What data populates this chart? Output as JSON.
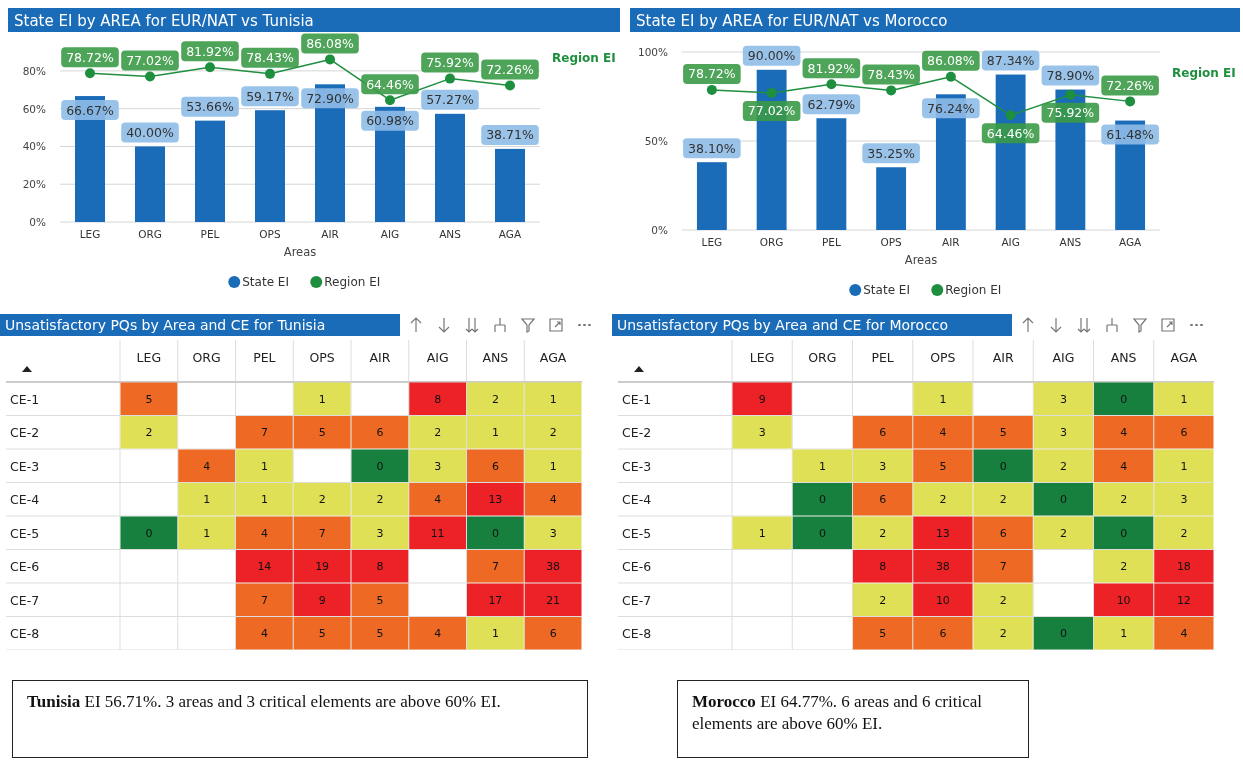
{
  "chart_data": [
    {
      "type": "bar",
      "title": "State EI by AREA for EUR/NAT vs Tunisia",
      "xlabel": "Areas",
      "categories": [
        "LEG",
        "ORG",
        "PEL",
        "OPS",
        "AIR",
        "AIG",
        "ANS",
        "AGA"
      ],
      "series": [
        {
          "name": "State EI",
          "type": "bar",
          "color": "#1a6bb8",
          "values": [
            66.67,
            40.0,
            53.66,
            59.17,
            72.9,
            60.98,
            57.27,
            38.71
          ],
          "value_labels": [
            "66.67%",
            "40.00%",
            "53.66%",
            "59.17%",
            "72.90%",
            "60.98%",
            "57.27%",
            "38.71%"
          ]
        },
        {
          "name": "Region EI",
          "type": "line",
          "color": "#1e8f3e",
          "marker": "circle",
          "values": [
            78.72,
            77.02,
            81.92,
            78.43,
            86.08,
            64.46,
            75.92,
            72.26
          ],
          "value_labels": [
            "78.72%",
            "77.02%",
            "81.92%",
            "78.43%",
            "86.08%",
            "64.46%",
            "75.92%",
            "72.26%"
          ]
        }
      ],
      "ylim": [
        0,
        90
      ],
      "yticks": [
        {
          "value": 0,
          "label": "0%"
        },
        {
          "value": 20,
          "label": "20%"
        },
        {
          "value": 40,
          "label": "40%"
        },
        {
          "value": 60,
          "label": "60%"
        },
        {
          "value": 80,
          "label": "80%"
        }
      ],
      "grid": "y",
      "legend": "bottom"
    },
    {
      "type": "bar",
      "title": "State EI by AREA for EUR/NAT vs Morocco",
      "xlabel": "Areas",
      "categories": [
        "LEG",
        "ORG",
        "PEL",
        "OPS",
        "AIR",
        "AIG",
        "ANS",
        "AGA"
      ],
      "series": [
        {
          "name": "State EI",
          "type": "bar",
          "color": "#1a6bb8",
          "values": [
            38.1,
            90.0,
            62.79,
            35.25,
            76.24,
            87.34,
            78.9,
            61.48
          ],
          "value_labels": [
            "38.10%",
            "90.00%",
            "62.79%",
            "35.25%",
            "76.24%",
            "87.34%",
            "78.90%",
            "61.48%"
          ]
        },
        {
          "name": "Region EI",
          "type": "line",
          "color": "#1e8f3e",
          "marker": "circle",
          "values": [
            78.72,
            77.02,
            81.92,
            78.43,
            86.08,
            64.46,
            75.92,
            72.26
          ],
          "value_labels": [
            "78.72%",
            "77.02%",
            "81.92%",
            "78.43%",
            "86.08%",
            "64.46%",
            "75.92%",
            "72.26%"
          ]
        }
      ],
      "ylim": [
        0,
        100
      ],
      "yticks": [
        {
          "value": 0,
          "label": "0%"
        },
        {
          "value": 50,
          "label": "50%"
        },
        {
          "value": 100,
          "label": "100%"
        }
      ],
      "grid": "y",
      "legend": "bottom"
    },
    {
      "type": "heatmap",
      "title": "Unsatisfactory PQs by Area and CE for Tunisia",
      "categories": [
        "LEG",
        "ORG",
        "PEL",
        "OPS",
        "AIR",
        "AIG",
        "ANS",
        "AGA"
      ],
      "y_categories": [
        "CE-1",
        "CE-2",
        "CE-3",
        "CE-4",
        "CE-5",
        "CE-6",
        "CE-7",
        "CE-8"
      ],
      "colors": [
        "#17803e",
        "#dfe055",
        "#ee6a24",
        "#ec2227"
      ],
      "data_labels": true,
      "cells": [
        [
          5,
          null,
          null,
          1,
          null,
          8,
          2,
          1
        ],
        [
          2,
          null,
          7,
          5,
          6,
          2,
          1,
          2
        ],
        [
          null,
          4,
          1,
          null,
          0,
          3,
          6,
          1
        ],
        [
          null,
          1,
          1,
          2,
          2,
          4,
          13,
          4
        ],
        [
          0,
          1,
          4,
          7,
          3,
          11,
          0,
          3
        ],
        [
          null,
          null,
          14,
          19,
          8,
          null,
          7,
          38
        ],
        [
          null,
          null,
          7,
          9,
          5,
          null,
          17,
          21
        ],
        [
          null,
          null,
          4,
          5,
          5,
          4,
          1,
          6
        ]
      ]
    },
    {
      "type": "heatmap",
      "title": "Unsatisfactory PQs by Area and CE for Morocco",
      "categories": [
        "LEG",
        "ORG",
        "PEL",
        "OPS",
        "AIR",
        "AIG",
        "ANS",
        "AGA"
      ],
      "y_categories": [
        "CE-1",
        "CE-2",
        "CE-3",
        "CE-4",
        "CE-5",
        "CE-6",
        "CE-7",
        "CE-8"
      ],
      "colors": [
        "#17803e",
        "#dfe055",
        "#ee6a24",
        "#ec2227"
      ],
      "data_labels": true,
      "cells": [
        [
          9,
          null,
          null,
          1,
          null,
          3,
          0,
          1
        ],
        [
          3,
          null,
          6,
          4,
          5,
          3,
          4,
          6
        ],
        [
          null,
          1,
          3,
          5,
          0,
          2,
          4,
          1
        ],
        [
          null,
          0,
          6,
          2,
          2,
          0,
          2,
          3
        ],
        [
          1,
          0,
          2,
          13,
          6,
          2,
          0,
          2
        ],
        [
          null,
          null,
          8,
          38,
          7,
          null,
          2,
          18
        ],
        [
          null,
          null,
          2,
          10,
          2,
          null,
          10,
          12
        ],
        [
          null,
          null,
          5,
          6,
          2,
          0,
          1,
          4
        ]
      ]
    },
    {
      "type": "other",
      "title": "Tunisia",
      "annotations": [
        "EI 56.71%. 3 areas and 3 critical elements are above 60% EI."
      ]
    },
    {
      "type": "other",
      "title": "Morocco",
      "annotations": [
        "EI 64.77%. 6 areas and 6 critical elements are above 60% EI."
      ]
    }
  ]
}
